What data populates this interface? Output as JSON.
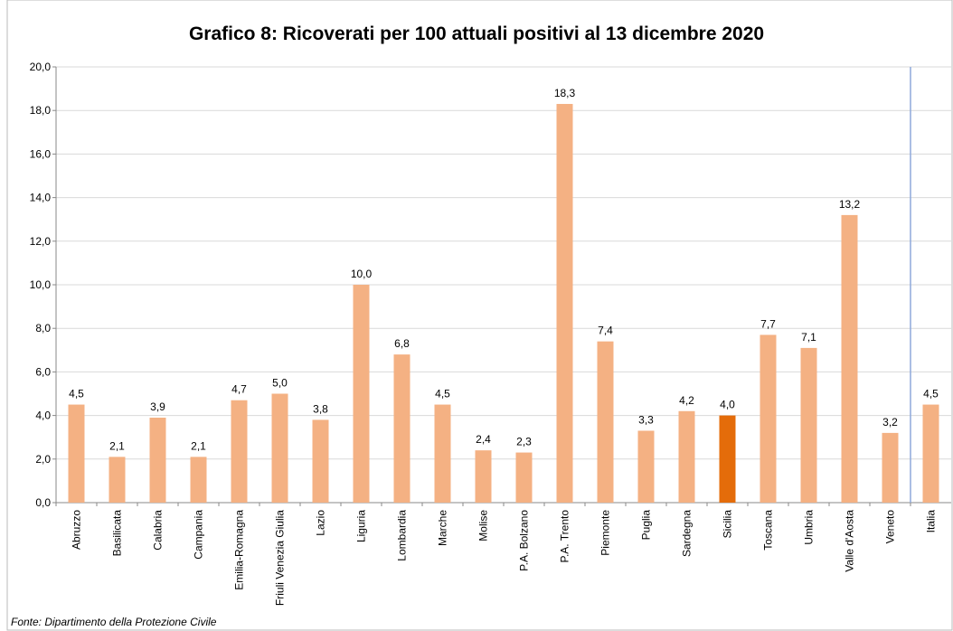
{
  "chart_data": {
    "type": "bar",
    "title": "Grafico 8: Ricoverati per 100 attuali positivi al 13 dicembre 2020",
    "source": "Fonte: Dipartimento della Protezione Civile",
    "categories": [
      "Abruzzo",
      "Basilicata",
      "Calabria",
      "Campania",
      "Emilia-Romagna",
      "Friuli Venezia Giulia",
      "Lazio",
      "Liguria",
      "Lombardia",
      "Marche",
      "Molise",
      "P.A. Bolzano",
      "P.A. Trento",
      "Piemonte",
      "Puglia",
      "Sardegna",
      "Sicilia",
      "Toscana",
      "Umbria",
      "Valle d'Aosta",
      "Veneto",
      "Italia"
    ],
    "values": [
      4.5,
      2.1,
      3.9,
      2.1,
      4.7,
      5.0,
      3.8,
      10.0,
      6.8,
      4.5,
      2.4,
      2.3,
      18.3,
      7.4,
      3.3,
      4.2,
      4.0,
      7.7,
      7.1,
      13.2,
      3.2,
      4.5
    ],
    "value_labels": [
      "4,5",
      "2,1",
      "3,9",
      "2,1",
      "4,7",
      "5,0",
      "3,8",
      "10,0",
      "6,8",
      "4,5",
      "2,4",
      "2,3",
      "18,3",
      "7,4",
      "3,3",
      "4,2",
      "4,0",
      "7,7",
      "7,1",
      "13,2",
      "3,2",
      "4,5"
    ],
    "colors": [
      "#f4b183",
      "#f4b183",
      "#f4b183",
      "#f4b183",
      "#f4b183",
      "#f4b183",
      "#f4b183",
      "#f4b183",
      "#f4b183",
      "#f4b183",
      "#f4b183",
      "#f4b183",
      "#f4b183",
      "#f4b183",
      "#f4b183",
      "#f4b183",
      "#e46c0a",
      "#f4b183",
      "#f4b183",
      "#f4b183",
      "#f4b183",
      "#f4b183"
    ],
    "ylim": [
      0,
      20
    ],
    "yticks": [
      {
        "value": 0,
        "label": "0,0"
      },
      {
        "value": 2,
        "label": "2,0"
      },
      {
        "value": 4,
        "label": "4,0"
      },
      {
        "value": 6,
        "label": "6,0"
      },
      {
        "value": 8,
        "label": "8,0"
      },
      {
        "value": 10,
        "label": "10,0"
      },
      {
        "value": 12,
        "label": "12,0"
      },
      {
        "value": 14,
        "label": "14,0"
      },
      {
        "value": 16,
        "label": "16,0"
      },
      {
        "value": 18,
        "label": "18,0"
      },
      {
        "value": 20,
        "label": "20,0"
      }
    ],
    "grid": true
  }
}
